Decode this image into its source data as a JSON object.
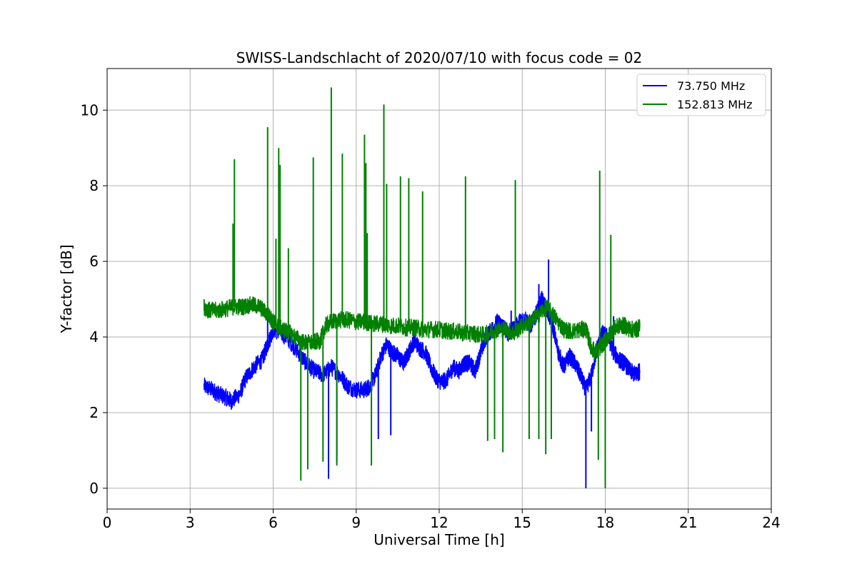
{
  "chart_data": {
    "type": "line",
    "title": "SWISS-Landschlacht of 2020/07/10 with focus code = 02",
    "xlabel": "Universal Time [h]",
    "ylabel": "Y-factor [dB]",
    "xlim": [
      0,
      24
    ],
    "ylim": [
      -0.55,
      11.1
    ],
    "xticks": [
      0,
      3,
      6,
      9,
      12,
      15,
      18,
      21,
      24
    ],
    "yticks": [
      0,
      2,
      4,
      6,
      8,
      10
    ],
    "grid": true,
    "legend_position": "top-right",
    "series": [
      {
        "name": " 73.750 MHz",
        "color": "#0000ff",
        "x": [
          3.5,
          3.8,
          4.0,
          4.3,
          4.5,
          4.8,
          5.0,
          5.3,
          5.6,
          5.8,
          6.0,
          6.3,
          6.6,
          6.9,
          7.2,
          7.5,
          7.8,
          8.1,
          8.4,
          8.7,
          9.0,
          9.3,
          9.5,
          9.7,
          9.9,
          10.1,
          10.3,
          10.5,
          10.7,
          10.9,
          11.1,
          11.3,
          11.5,
          11.7,
          11.9,
          12.1,
          12.3,
          12.5,
          12.7,
          12.9,
          13.1,
          13.3,
          13.5,
          13.7,
          13.9,
          14.1,
          14.3,
          14.5,
          14.7,
          14.9,
          15.1,
          15.3,
          15.5,
          15.7,
          15.9,
          16.1,
          16.3,
          16.5,
          16.7,
          16.9,
          17.1,
          17.3,
          17.5,
          17.7,
          17.9,
          18.1,
          18.3,
          18.5,
          18.7,
          18.9,
          19.1,
          19.25
        ],
        "y": [
          2.7,
          2.6,
          2.5,
          2.4,
          2.3,
          2.5,
          2.9,
          3.2,
          3.4,
          3.8,
          4.2,
          4.1,
          3.9,
          3.6,
          3.3,
          3.1,
          3.0,
          3.2,
          3.0,
          2.7,
          2.6,
          2.6,
          2.7,
          3.0,
          3.5,
          3.8,
          3.6,
          3.5,
          3.3,
          3.6,
          3.9,
          3.7,
          3.6,
          3.2,
          2.9,
          2.8,
          2.9,
          3.2,
          3.1,
          3.3,
          3.3,
          3.1,
          3.6,
          4.0,
          4.2,
          4.4,
          4.3,
          4.1,
          4.2,
          4.4,
          4.5,
          4.3,
          4.6,
          5.0,
          4.7,
          4.3,
          3.6,
          3.2,
          3.5,
          3.3,
          3.0,
          2.6,
          3.0,
          3.7,
          4.1,
          4.0,
          3.6,
          3.4,
          3.3,
          3.1,
          3.0,
          3.1
        ],
        "spikes": [
          [
            5.8,
            4.6
          ],
          [
            8.0,
            0.25
          ],
          [
            8.3,
            0.7
          ],
          [
            9.8,
            1.3
          ],
          [
            10.25,
            1.4
          ],
          [
            14.6,
            4.7
          ],
          [
            15.6,
            5.4
          ],
          [
            15.95,
            6.05
          ],
          [
            17.3,
            0.0
          ],
          [
            17.5,
            1.5
          ],
          [
            18.3,
            4.55
          ]
        ]
      },
      {
        "name": "152.813 MHz",
        "color": "#008000",
        "x": [
          3.5,
          3.7,
          4.0,
          4.3,
          4.6,
          4.9,
          5.2,
          5.5,
          5.8,
          6.0,
          6.2,
          6.5,
          6.8,
          7.1,
          7.4,
          7.7,
          7.9,
          8.1,
          8.4,
          8.7,
          9.0,
          9.3,
          9.6,
          9.9,
          10.2,
          10.5,
          10.8,
          11.1,
          11.4,
          11.7,
          12.0,
          12.3,
          12.6,
          12.9,
          13.2,
          13.5,
          13.8,
          14.1,
          14.4,
          14.7,
          15.0,
          15.3,
          15.6,
          15.9,
          16.2,
          16.5,
          16.8,
          17.1,
          17.3,
          17.5,
          17.7,
          17.9,
          18.1,
          18.3,
          18.5,
          18.7,
          18.9,
          19.1,
          19.25
        ],
        "y": [
          4.8,
          4.7,
          4.7,
          4.75,
          4.8,
          4.8,
          4.85,
          4.8,
          4.6,
          4.4,
          4.25,
          4.15,
          4.0,
          3.85,
          3.85,
          3.9,
          4.3,
          4.4,
          4.45,
          4.45,
          4.4,
          4.4,
          4.35,
          4.35,
          4.3,
          4.3,
          4.25,
          4.25,
          4.2,
          4.2,
          4.2,
          4.15,
          4.15,
          4.1,
          4.1,
          4.05,
          4.1,
          4.2,
          4.2,
          4.1,
          4.3,
          4.4,
          4.6,
          4.8,
          4.5,
          4.2,
          4.15,
          4.2,
          4.2,
          3.7,
          3.6,
          3.8,
          4.0,
          4.2,
          4.3,
          4.3,
          4.2,
          4.2,
          4.25
        ],
        "spikes": [
          [
            4.55,
            7.0
          ],
          [
            4.6,
            8.7
          ],
          [
            5.8,
            9.55
          ],
          [
            6.1,
            6.6
          ],
          [
            6.2,
            9.0
          ],
          [
            6.25,
            8.55
          ],
          [
            6.55,
            6.35
          ],
          [
            7.0,
            0.2
          ],
          [
            7.25,
            0.5
          ],
          [
            7.45,
            8.75
          ],
          [
            7.8,
            0.7
          ],
          [
            8.1,
            10.6
          ],
          [
            8.3,
            0.6
          ],
          [
            8.5,
            8.85
          ],
          [
            9.3,
            9.35
          ],
          [
            9.35,
            8.6
          ],
          [
            9.4,
            6.75
          ],
          [
            9.55,
            0.6
          ],
          [
            10.0,
            10.15
          ],
          [
            10.1,
            8.05
          ],
          [
            10.6,
            8.25
          ],
          [
            10.9,
            8.2
          ],
          [
            11.4,
            7.85
          ],
          [
            12.95,
            8.25
          ],
          [
            13.75,
            1.25
          ],
          [
            14.0,
            1.3
          ],
          [
            14.3,
            0.95
          ],
          [
            14.75,
            8.15
          ],
          [
            15.25,
            1.3
          ],
          [
            15.6,
            1.3
          ],
          [
            15.85,
            0.9
          ],
          [
            16.05,
            1.3
          ],
          [
            17.8,
            8.4
          ],
          [
            17.75,
            0.75
          ],
          [
            18.0,
            0.0
          ],
          [
            18.2,
            6.7
          ]
        ]
      }
    ]
  }
}
